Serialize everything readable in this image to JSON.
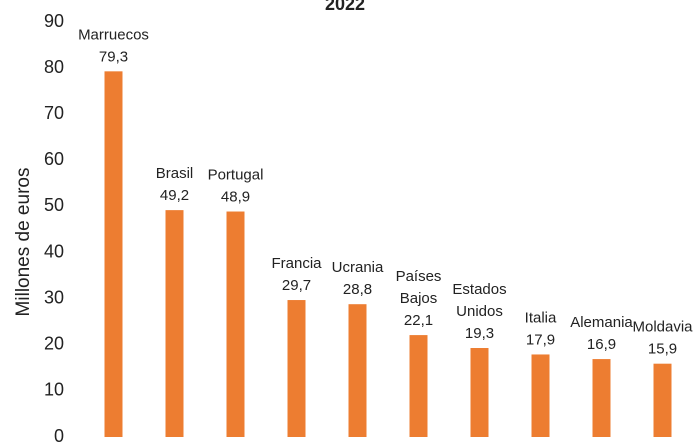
{
  "chart_data": {
    "type": "bar",
    "title": "2022",
    "y_label": "Millones de euros",
    "categories": [
      "Marruecos",
      "Brasil",
      "Portugal",
      "Francia",
      "Ucrania",
      "Países Bajos",
      "Estados Unidos",
      "Italia",
      "Alemania",
      "Moldavia"
    ],
    "values": [
      79.3,
      49.2,
      48.9,
      29.7,
      28.8,
      22.1,
      19.3,
      17.9,
      16.9,
      15.9
    ],
    "value_labels": [
      "79,3",
      "49,2",
      "48,9",
      "29,7",
      "28,8",
      "22,1",
      "19,3",
      "17,9",
      "16,9",
      "15,9"
    ],
    "color": "#ed7d31",
    "ylim": [
      0,
      90
    ],
    "yticks": [
      0,
      10,
      20,
      30,
      40,
      50,
      60,
      70,
      80,
      90
    ],
    "grid": false
  }
}
